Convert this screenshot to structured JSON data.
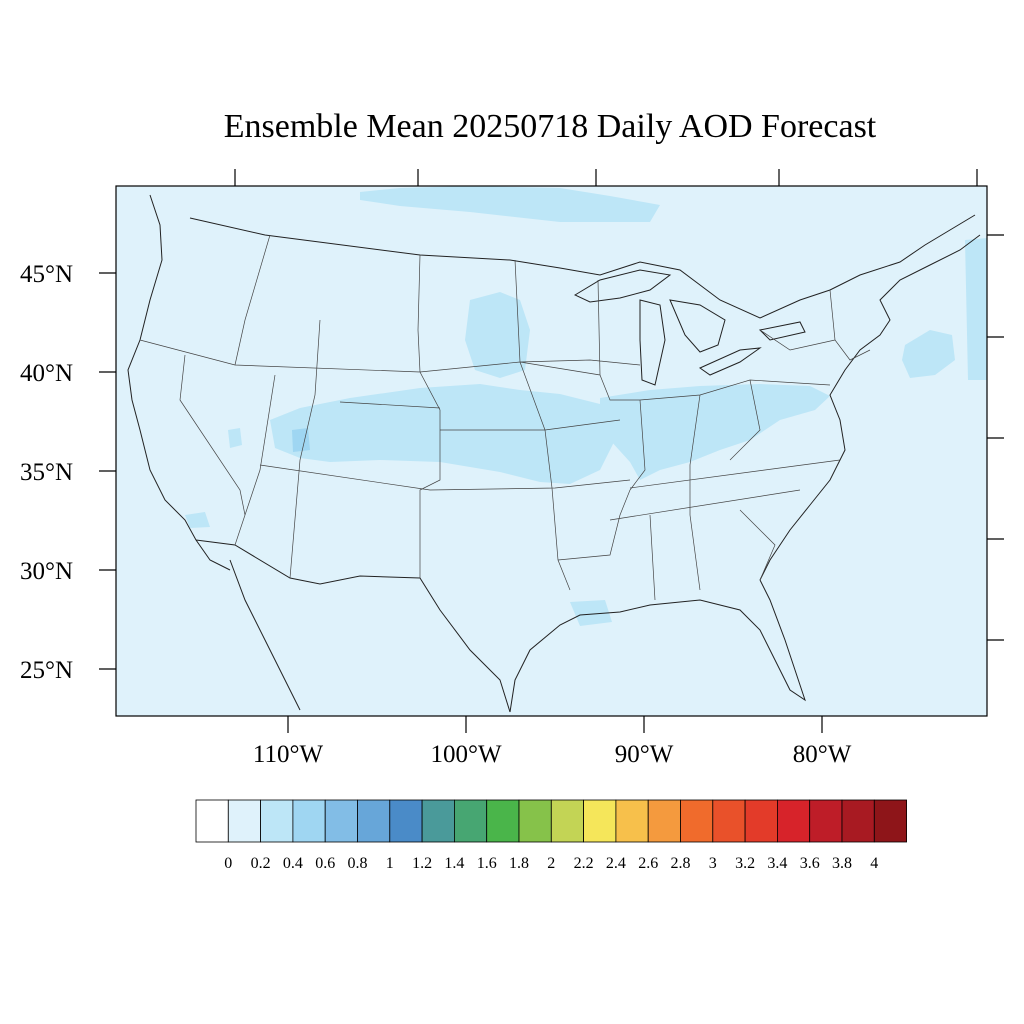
{
  "title": "Ensemble Mean 20250718 Daily AOD Forecast",
  "map": {
    "background_color": "#dff2fb",
    "lat_labels": [
      "45°N",
      "40°N",
      "35°N",
      "30°N",
      "25°N"
    ],
    "lon_labels": [
      "110°W",
      "100°W",
      "90°W",
      "80°W"
    ]
  },
  "colorbar": {
    "labels": [
      "0",
      "0.2",
      "0.4",
      "0.6",
      "0.8",
      "1",
      "1.2",
      "1.4",
      "1.6",
      "1.8",
      "2",
      "2.2",
      "2.4",
      "2.6",
      "2.8",
      "3",
      "3.2",
      "3.4",
      "3.6",
      "3.8",
      "4"
    ],
    "colors": [
      "#ffffff",
      "#dff2fb",
      "#bde6f7",
      "#9fd6f2",
      "#82bde6",
      "#67a6d9",
      "#4a8bc8",
      "#4a9a9a",
      "#47a672",
      "#4ab54a",
      "#86c24a",
      "#c3d455",
      "#f5e65a",
      "#f7c04b",
      "#f49a3e",
      "#f06b2c",
      "#e9512a",
      "#e33b29",
      "#d7232a",
      "#be1d28",
      "#a81a22",
      "#8e1519"
    ]
  },
  "regions": [
    {
      "name": "central-plains-band",
      "level": "0.2–0.4"
    },
    {
      "name": "ohio-valley-band",
      "level": "0.2–0.4"
    },
    {
      "name": "canada-north-band",
      "level": "0.2–0.4"
    },
    {
      "name": "colorado-spot",
      "level": "0.4–0.6"
    }
  ]
}
